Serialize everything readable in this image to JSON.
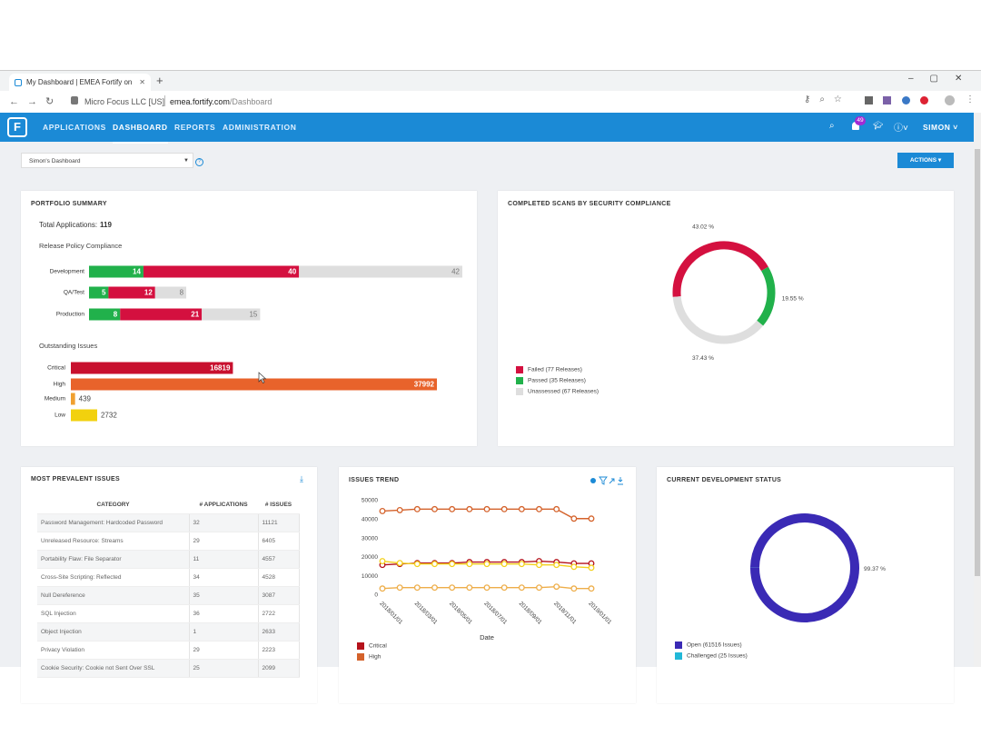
{
  "browser": {
    "tab_title": "My Dashboard | EMEA Fortify on",
    "site_info": "Micro Focus LLC [US]",
    "url_host": "emea.fortify.com",
    "url_path": "/Dashboard"
  },
  "nav": {
    "items": [
      "APPLICATIONS",
      "DASHBOARD",
      "REPORTS",
      "ADMINISTRATION"
    ],
    "active": 1,
    "notifications": 49,
    "user": "SIMON"
  },
  "toolbar": {
    "dashboard_select": "Simon's Dashboard",
    "actions": "ACTIONS"
  },
  "portfolio": {
    "title": "PORTFOLIO SUMMARY",
    "total_label": "Total Applications:",
    "total": 119,
    "compliance_title": "Release Policy Compliance",
    "compliance": {
      "type": "bar",
      "stacked": true,
      "orientation": "horizontal",
      "categories": [
        "Development",
        "QA/Test",
        "Production"
      ],
      "series": [
        {
          "color": "#21b14b",
          "values": [
            14,
            5,
            8
          ]
        },
        {
          "color": "#d4103f",
          "values": [
            40,
            12,
            21
          ]
        },
        {
          "color": "#dedede",
          "values": [
            42,
            8,
            15
          ]
        }
      ]
    },
    "issues_title": "Outstanding Issues",
    "issues": {
      "type": "bar",
      "orientation": "horizontal",
      "categories": [
        "Critical",
        "High",
        "Medium",
        "Low"
      ],
      "values": [
        16819,
        37992,
        439,
        2732
      ],
      "colors": [
        "#c8102e",
        "#e8632b",
        "#f0a030",
        "#f2d10e"
      ]
    }
  },
  "scans": {
    "title": "COMPLETED SCANS BY SECURITY COMPLIANCE",
    "chart": {
      "type": "donut",
      "values": [
        43.02,
        19.55,
        37.43
      ],
      "value_labels": [
        "43.02 %",
        "19.55 %",
        "37.43 %"
      ],
      "colors": [
        "#d4103f",
        "#21b14b",
        "#dedede"
      ],
      "legend": [
        "Failed (77 Releases)",
        "Passed (35 Releases)",
        "Unassessed (67 Releases)"
      ]
    }
  },
  "prevalent": {
    "title": "MOST PREVALENT ISSUES",
    "table": {
      "columns": [
        "CATEGORY",
        "# APPLICATIONS",
        "# ISSUES"
      ],
      "rows": [
        [
          "Password Management: Hardcoded Password",
          32,
          11121
        ],
        [
          "Unreleased Resource: Streams",
          29,
          6405
        ],
        [
          "Portability Flaw: File Separator",
          11,
          4557
        ],
        [
          "Cross-Site Scripting: Reflected",
          34,
          4528
        ],
        [
          "Null Dereference",
          35,
          3087
        ],
        [
          "SQL Injection",
          36,
          2722
        ],
        [
          "Object Injection",
          1,
          2633
        ],
        [
          "Privacy Violation",
          29,
          2223
        ],
        [
          "Cookie Security: Cookie not Sent Over SSL",
          25,
          2099
        ]
      ]
    }
  },
  "trend": {
    "title": "ISSUES TREND",
    "chart": {
      "type": "line",
      "x": [
        "2018/01/01",
        null,
        "2018/03/01",
        null,
        "2018/05/01",
        null,
        "2018/07/01",
        null,
        "2018/09/01",
        null,
        "2018/11/01",
        null,
        "2019/01/01"
      ],
      "xlabel": "Date",
      "ylim": [
        0,
        50000
      ],
      "yticks": [
        0,
        10000,
        20000,
        30000,
        40000,
        50000
      ],
      "series": [
        {
          "name": "Critical",
          "color": "#b5121b",
          "values": [
            16000,
            16500,
            17000,
            17000,
            17000,
            17500,
            17500,
            17500,
            17500,
            18000,
            17500,
            16800,
            16800
          ]
        },
        {
          "name": "High",
          "color": "#d4622b",
          "values": [
            44500,
            45000,
            45500,
            45500,
            45500,
            45500,
            45500,
            45500,
            45500,
            45500,
            45500,
            40500,
            40500
          ]
        },
        {
          "color": "#eeae4a",
          "values": [
            3500,
            4000,
            4000,
            4000,
            4000,
            4000,
            4000,
            4000,
            4000,
            4000,
            4500,
            3500,
            3500
          ]
        },
        {
          "color": "#f3d11c",
          "values": [
            18000,
            17000,
            16500,
            16500,
            16500,
            16500,
            16500,
            16500,
            16500,
            16000,
            16000,
            15000,
            14500
          ]
        }
      ]
    }
  },
  "devstatus": {
    "title": "CURRENT DEVELOPMENT STATUS",
    "chart": {
      "type": "donut",
      "values": [
        99.37,
        0.04
      ],
      "value_labels": [
        "99.37 %",
        null
      ],
      "colors": [
        "#3a2ab5",
        "#22b8d8"
      ],
      "legend": [
        "Open (61516 Issues)",
        "Challenged (25 Issues)"
      ]
    }
  }
}
